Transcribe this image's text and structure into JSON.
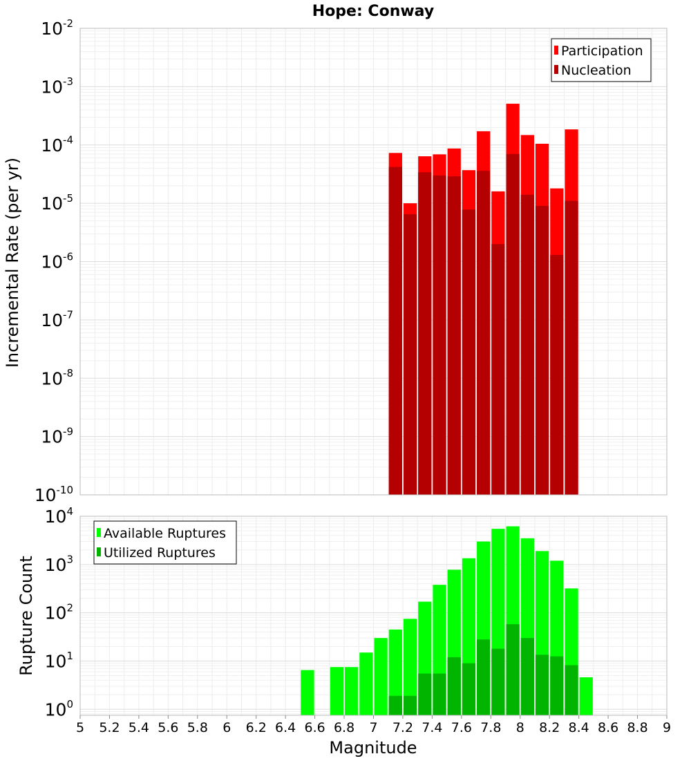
{
  "chart_data": [
    {
      "type": "bar",
      "title": "Hope: Conway",
      "ylabel": "Incremental Rate (per yr)",
      "xlabel": "",
      "xlim": [
        5,
        9
      ],
      "ylim": [
        1e-10,
        0.01
      ],
      "yscale": "log",
      "y_ticks": [
        {
          "base": "10",
          "exp": "-10"
        },
        {
          "base": "10",
          "exp": "-9"
        },
        {
          "base": "10",
          "exp": "-8"
        },
        {
          "base": "10",
          "exp": "-7"
        },
        {
          "base": "10",
          "exp": "-6"
        },
        {
          "base": "10",
          "exp": "-5"
        },
        {
          "base": "10",
          "exp": "-4"
        },
        {
          "base": "10",
          "exp": "-3"
        },
        {
          "base": "10",
          "exp": "-2"
        }
      ],
      "grid": true,
      "legend_position": "top-right",
      "x": [
        7.15,
        7.25,
        7.35,
        7.45,
        7.55,
        7.65,
        7.75,
        7.85,
        7.95,
        8.05,
        8.15,
        8.25,
        8.35
      ],
      "series": [
        {
          "name": "Participation",
          "color": "#ff0000",
          "values": [
            7.3e-05,
            1e-05,
            6.4e-05,
            6.9e-05,
            8.7e-05,
            3.7e-05,
            0.000172,
            1.6e-05,
            0.00051,
            0.000148,
            0.000105,
            1.8e-05,
            0.000185
          ]
        },
        {
          "name": "Nucleation",
          "color": "#b40000",
          "values": [
            4.2e-05,
            6.5e-06,
            3.4e-05,
            3e-05,
            2.9e-05,
            7.8e-06,
            3.6e-05,
            2e-06,
            7e-05,
            1.4e-05,
            9e-06,
            1.3e-06,
            1.1e-05
          ]
        }
      ]
    },
    {
      "type": "bar",
      "title": "",
      "ylabel": "Rupture Count",
      "xlabel": "Magnitude",
      "xlim": [
        5,
        9
      ],
      "ylim": [
        0.75,
        10000
      ],
      "yscale": "log",
      "y_ticks": [
        {
          "value": 1,
          "base": "10",
          "exp": "0"
        },
        {
          "value": 10,
          "base": "10",
          "exp": "1"
        },
        {
          "value": 100,
          "base": "10",
          "exp": "2"
        },
        {
          "value": 1000,
          "base": "10",
          "exp": "3"
        },
        {
          "value": 10000,
          "base": "10",
          "exp": "4"
        }
      ],
      "x_ticks": [
        "5",
        "5.2",
        "5.4",
        "5.6",
        "5.8",
        "6",
        "6.2",
        "6.4",
        "6.6",
        "6.8",
        "7",
        "7.2",
        "7.4",
        "7.6",
        "7.8",
        "8",
        "8.2",
        "8.4",
        "8.6",
        "8.8",
        "9"
      ],
      "grid": true,
      "legend_position": "top-left",
      "series": [
        {
          "name": "Available Ruptures",
          "color": "#00ff00",
          "x": [
            6.55,
            6.75,
            6.85,
            6.95,
            7.05,
            7.15,
            7.25,
            7.35,
            7.45,
            7.55,
            7.65,
            7.75,
            7.85,
            7.95,
            8.05,
            8.15,
            8.25,
            8.35,
            8.45
          ],
          "values": [
            6.5,
            7.5,
            7.5,
            15,
            30,
            45,
            75,
            170,
            380,
            780,
            1350,
            3000,
            5500,
            6200,
            3500,
            1900,
            1200,
            320,
            4.6
          ]
        },
        {
          "name": "Utilized Ruptures",
          "color": "#00b400",
          "x": [
            7.15,
            7.25,
            7.35,
            7.45,
            7.55,
            7.65,
            7.75,
            7.85,
            7.95,
            8.05,
            8.15,
            8.25,
            8.35
          ],
          "values": [
            1.9,
            1.9,
            5.5,
            5.5,
            12,
            9,
            28,
            18,
            58,
            30,
            13.5,
            12.5,
            8.2
          ]
        }
      ]
    }
  ]
}
